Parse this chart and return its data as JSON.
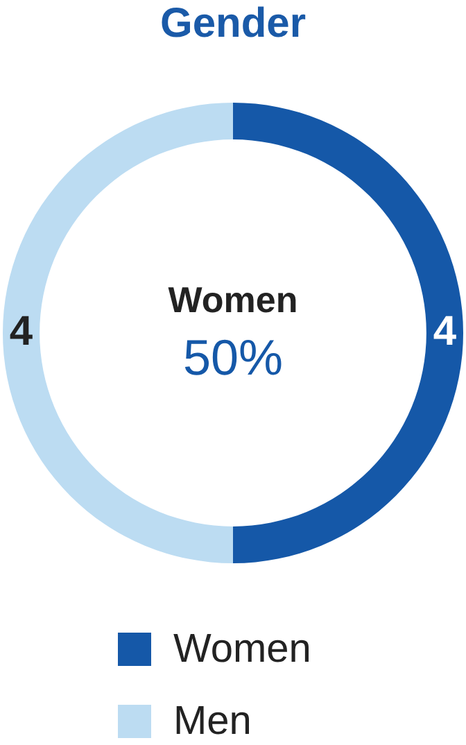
{
  "chart_data": {
    "type": "donut",
    "title": "Gender",
    "categories": [
      "Women",
      "Men"
    ],
    "values": [
      4,
      4
    ],
    "colors": [
      "#1558a8",
      "#bcdcf2"
    ],
    "data_labels": true,
    "legend": "bottom",
    "annotations": [
      "Women",
      "50%"
    ]
  }
}
